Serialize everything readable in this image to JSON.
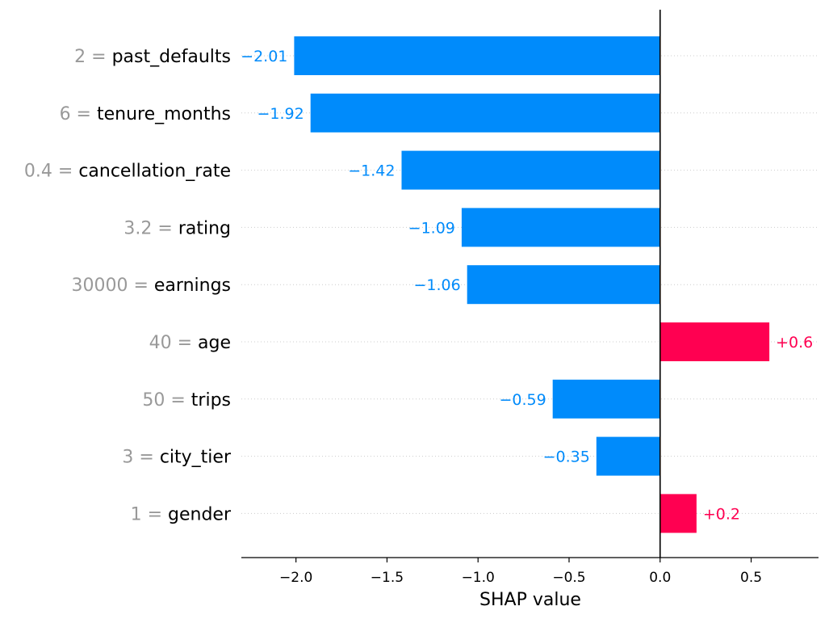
{
  "chart_data": {
    "type": "bar",
    "orientation": "horizontal",
    "xlabel": "SHAP value",
    "xlim": [
      -2.3,
      0.87
    ],
    "xticks": [
      -2.0,
      -1.5,
      -1.0,
      -0.5,
      0.0,
      0.5
    ],
    "xtick_labels": [
      "−2.0",
      "−1.5",
      "−1.0",
      "−0.5",
      "0.0",
      "0.5"
    ],
    "grid": false,
    "features": [
      {
        "value": "2",
        "name": "past_defaults",
        "shap": -2.01,
        "label": "−2.01"
      },
      {
        "value": "6",
        "name": "tenure_months",
        "shap": -1.92,
        "label": "−1.92"
      },
      {
        "value": "0.4",
        "name": "cancellation_rate",
        "shap": -1.42,
        "label": "−1.42"
      },
      {
        "value": "3.2",
        "name": "rating",
        "shap": -1.09,
        "label": "−1.09"
      },
      {
        "value": "30000",
        "name": "earnings",
        "shap": -1.06,
        "label": "−1.06"
      },
      {
        "value": "40",
        "name": "age",
        "shap": 0.6,
        "label": "+0.6"
      },
      {
        "value": "50",
        "name": "trips",
        "shap": -0.59,
        "label": "−0.59"
      },
      {
        "value": "3",
        "name": "city_tier",
        "shap": -0.35,
        "label": "−0.35"
      },
      {
        "value": "1",
        "name": "gender",
        "shap": 0.2,
        "label": "+0.2"
      }
    ],
    "colors": {
      "negative": "#008bfb",
      "positive": "#ff0051",
      "feature_value": "#999999",
      "feature_name": "#000000"
    }
  }
}
